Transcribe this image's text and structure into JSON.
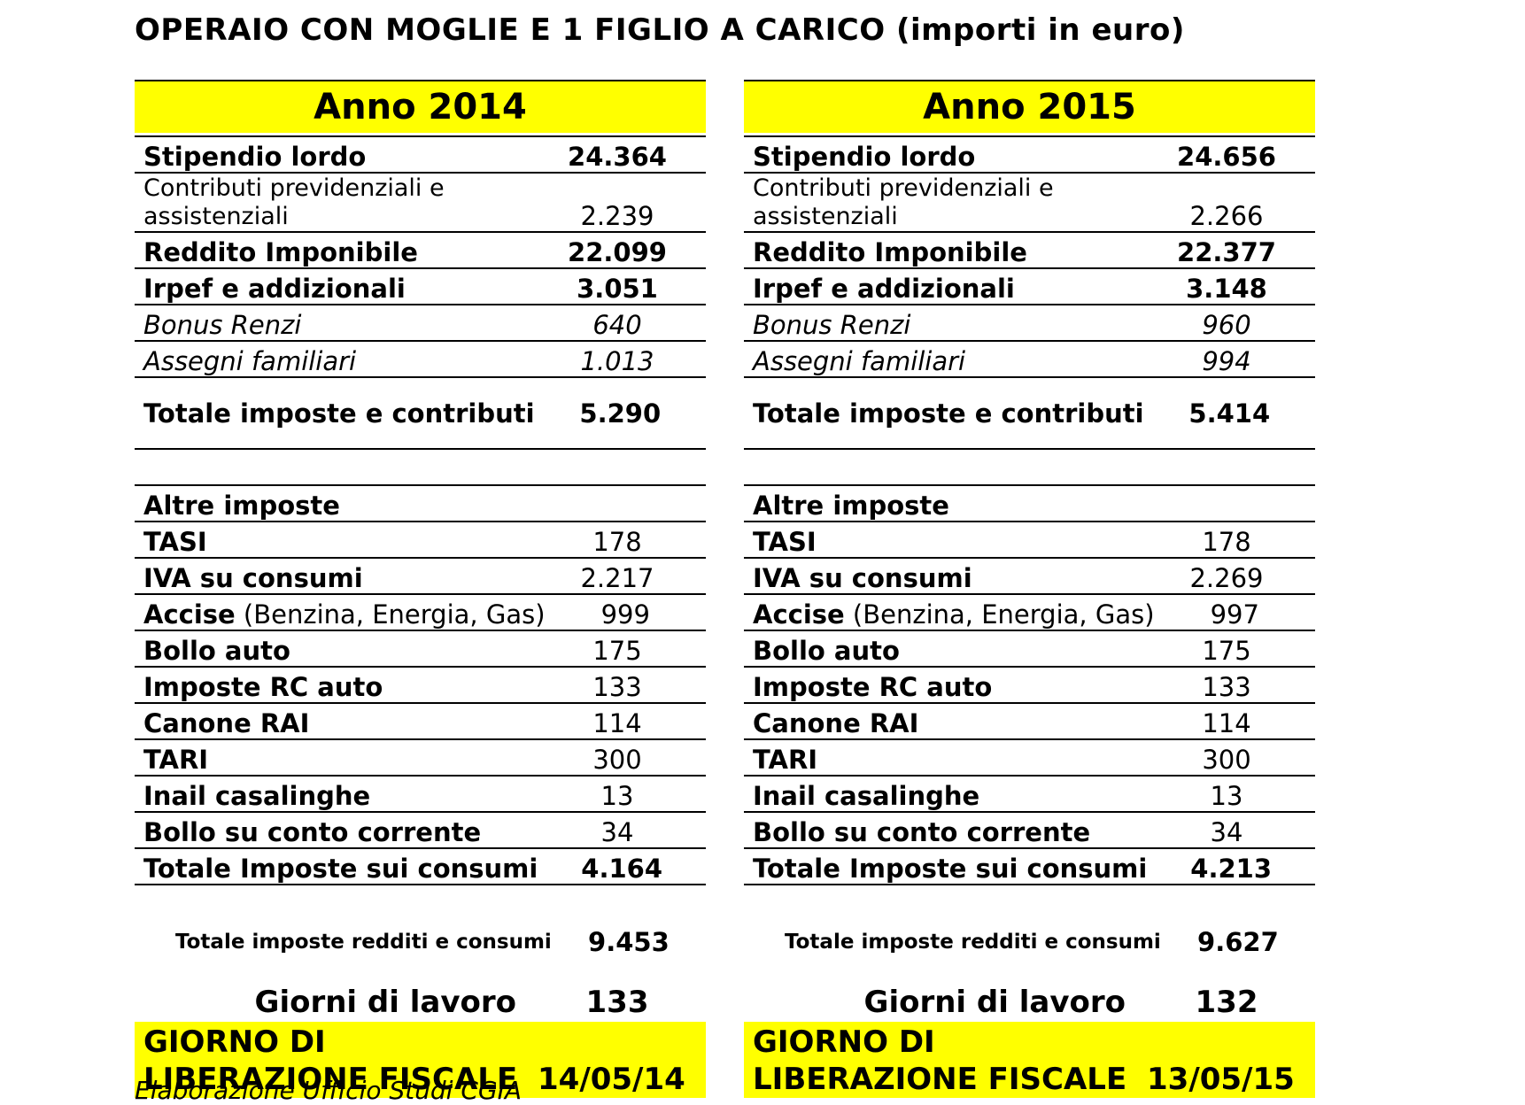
{
  "title": "OPERAIO CON MOGLIE E 1 FIGLIO A CARICO (importi in euro)",
  "highlight_color": "#ffff00",
  "panels": [
    {
      "header": "Anno 2014",
      "stipendio_label": "Stipendio lordo",
      "stipendio_value": "24.364",
      "contributi_label": "Contributi previdenziali e assistenziali",
      "contributi_value": "2.239",
      "reddito_label": "Reddito Imponibile",
      "reddito_value": "22.099",
      "irpef_label": "Irpef e addizionali",
      "irpef_value": "3.051",
      "bonus_label": "Bonus Renzi",
      "bonus_value": "640",
      "assegni_label": "Assegni familiari",
      "assegni_value": "1.013",
      "totale_label": "Totale imposte e contributi",
      "totale_value": "5.290",
      "altre_label": "Altre imposte",
      "tasi_label": "TASI",
      "tasi_value": "178",
      "iva_label": "IVA su consumi",
      "iva_value": "2.217",
      "accise_label": "Accise",
      "accise_note": " (Benzina, Energia, Gas)",
      "accise_value": "999",
      "bollo_auto_label": "Bollo auto",
      "bollo_auto_value": "175",
      "rc_label": "Imposte RC auto",
      "rc_value": "133",
      "rai_label": "Canone RAI",
      "rai_value": "114",
      "tari_label": "TARI",
      "tari_value": "300",
      "inail_label": "Inail casalinghe",
      "inail_value": "13",
      "bollo_cc_label": "Bollo su conto corrente",
      "bollo_cc_value": "34",
      "totale_consumi_label": "Totale Imposte sui consumi",
      "totale_consumi_value": "4.164",
      "grand_label": "Totale imposte redditi e consumi",
      "grand_value": "9.453",
      "giorni_label": "Giorni di lavoro",
      "giorni_value": "133",
      "liberazione_label": "GIORNO DI LIBERAZIONE FISCALE",
      "liberazione_value": "14/05/14"
    },
    {
      "header": "Anno 2015",
      "stipendio_label": "Stipendio lordo",
      "stipendio_value": "24.656",
      "contributi_label": "Contributi previdenziali e assistenziali",
      "contributi_value": "2.266",
      "reddito_label": "Reddito Imponibile",
      "reddito_value": "22.377",
      "irpef_label": "Irpef e addizionali",
      "irpef_value": "3.148",
      "bonus_label": "Bonus Renzi",
      "bonus_value": "960",
      "assegni_label": "Assegni familiari",
      "assegni_value": "994",
      "totale_label": "Totale imposte e contributi",
      "totale_value": "5.414",
      "altre_label": "Altre imposte",
      "tasi_label": "TASI",
      "tasi_value": "178",
      "iva_label": "IVA su consumi",
      "iva_value": "2.269",
      "accise_label": "Accise",
      "accise_note": " (Benzina, Energia, Gas)",
      "accise_value": "997",
      "bollo_auto_label": "Bollo auto",
      "bollo_auto_value": "175",
      "rc_label": "Imposte RC auto",
      "rc_value": "133",
      "rai_label": "Canone RAI",
      "rai_value": "114",
      "tari_label": "TARI",
      "tari_value": "300",
      "inail_label": "Inail casalinghe",
      "inail_value": "13",
      "bollo_cc_label": "Bollo su conto corrente",
      "bollo_cc_value": "34",
      "totale_consumi_label": "Totale Imposte sui consumi",
      "totale_consumi_value": "4.213",
      "grand_label": "Totale imposte redditi e consumi",
      "grand_value": "9.627",
      "giorni_label": "Giorni di lavoro",
      "giorni_value": "132",
      "liberazione_label": "GIORNO DI LIBERAZIONE FISCALE",
      "liberazione_value": "13/05/15"
    }
  ],
  "footer": "Elaborazione Ufficio Studi CGIA"
}
